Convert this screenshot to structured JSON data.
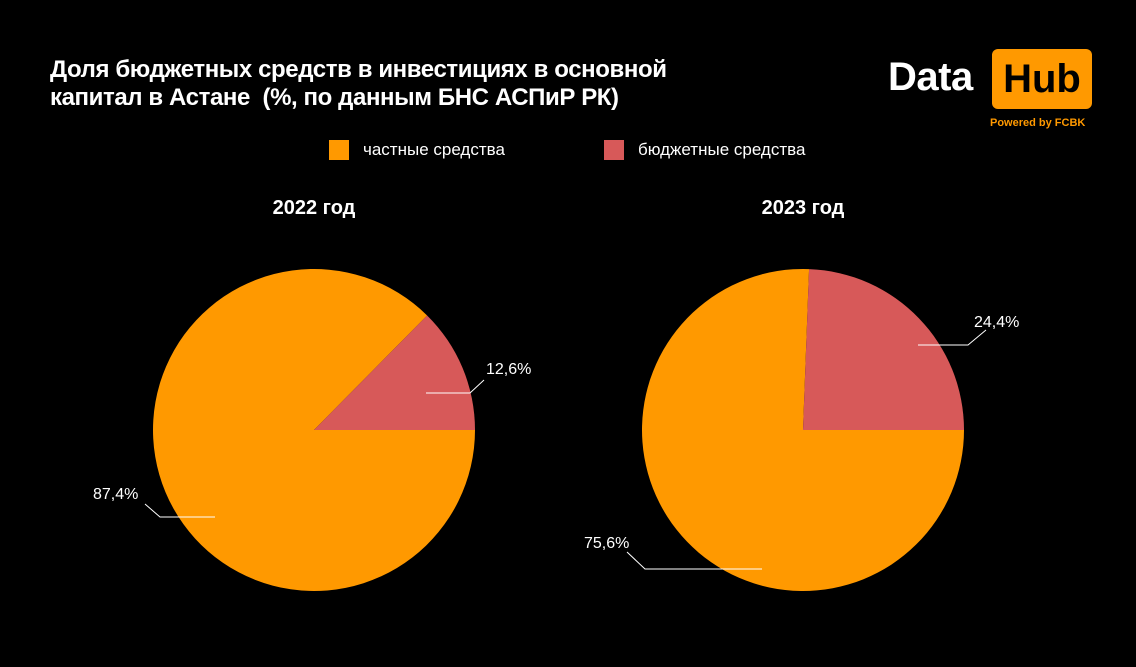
{
  "title_lines": [
    "Доля бюджетных средств в инвестициях в основной",
    "капитал в Астане  (%, по данным БНС АСПиР РК)"
  ],
  "logo": {
    "data_text": "Data",
    "hub_text": "Hub",
    "powered_text": "Powered by FCBK"
  },
  "colors": {
    "background": "#000000",
    "private": "#ff9900",
    "budget": "#d75959",
    "accent": "#ff9900"
  },
  "legend": [
    {
      "label": "частные средства",
      "color": "#ff9900"
    },
    {
      "label": "бюджетные средства",
      "color": "#d75959"
    }
  ],
  "chart_data": [
    {
      "type": "pie",
      "title": "2022 год",
      "categories": [
        "частные средства",
        "бюджетные средства"
      ],
      "values": [
        87.4,
        12.6
      ],
      "labels": [
        "87,4%",
        "12,6%"
      ],
      "colors": [
        "#ff9900",
        "#d75959"
      ],
      "legend": "top-center"
    },
    {
      "type": "pie",
      "title": "2023 год",
      "categories": [
        "частные средства",
        "бюджетные средства"
      ],
      "values": [
        75.6,
        24.4
      ],
      "labels": [
        "75,6%",
        "24,4%"
      ],
      "colors": [
        "#ff9900",
        "#d75959"
      ],
      "legend": "top-center"
    }
  ]
}
